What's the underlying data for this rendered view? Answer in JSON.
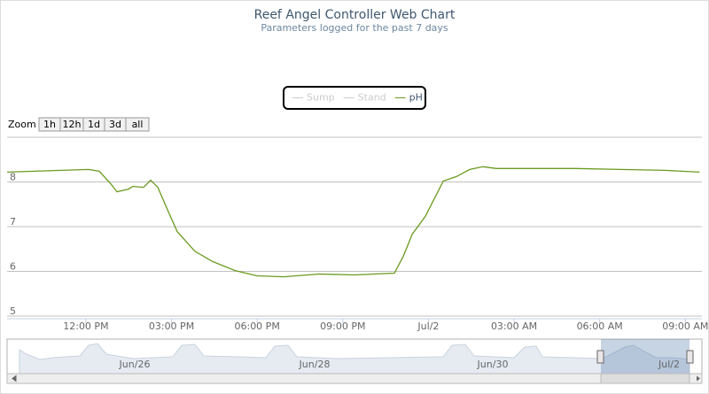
{
  "chart_data": {
    "type": "line",
    "title": "Reef Angel Controller Web Chart",
    "subtitle": "Parameters logged for the past 7 days",
    "zoom_label": "Zoom",
    "zoom_buttons": [
      "1h",
      "12h",
      "1d",
      "3d",
      "all"
    ],
    "series": [
      {
        "name": "Sump",
        "color": "#cccccc",
        "visible": false
      },
      {
        "name": "Stand",
        "color": "#cccccc",
        "visible": false
      },
      {
        "name": "pH",
        "color": "#6a9a1f",
        "visible": true,
        "x": [
          9.24,
          12.09,
          12.47,
          12.87,
          13.09,
          13.49,
          13.65,
          14.02,
          14.27,
          14.52,
          14.89,
          15.2,
          15.82,
          16.44,
          17.22,
          17.99,
          18.93,
          20.17,
          21.41,
          22.81,
          23.12,
          23.43,
          23.89,
          24.2,
          24.52,
          24.98,
          25.45,
          25.91,
          26.38,
          27.62,
          29.17,
          30.73,
          32.28,
          33.5
        ],
        "values": [
          8.22,
          8.28,
          8.24,
          7.96,
          7.78,
          7.84,
          7.9,
          7.88,
          8.04,
          7.88,
          7.33,
          6.89,
          6.45,
          6.22,
          6.02,
          5.9,
          5.88,
          5.94,
          5.92,
          5.96,
          6.34,
          6.83,
          7.23,
          7.62,
          8.02,
          8.12,
          8.28,
          8.34,
          8.3,
          8.3,
          8.3,
          8.28,
          8.26,
          8.22
        ]
      }
    ],
    "xlim": [
      9.24,
      33.58
    ],
    "xticks": [
      {
        "value": 12,
        "label": "12:00 PM"
      },
      {
        "value": 15,
        "label": "03:00 PM"
      },
      {
        "value": 18,
        "label": "06:00 PM"
      },
      {
        "value": 21,
        "label": "09:00 PM"
      },
      {
        "value": 24,
        "label": "Jul/2"
      },
      {
        "value": 27,
        "label": "03:00 AM"
      },
      {
        "value": 30,
        "label": "06:00 AM"
      },
      {
        "value": 33,
        "label": "09:00 AM"
      }
    ],
    "ylim": [
      5,
      9
    ],
    "yticks": [
      5,
      6,
      7,
      8
    ],
    "grid": true,
    "navigator_labels": [
      "Jun/26",
      "Jun/28",
      "Jun/30",
      "Jul/2"
    ]
  }
}
